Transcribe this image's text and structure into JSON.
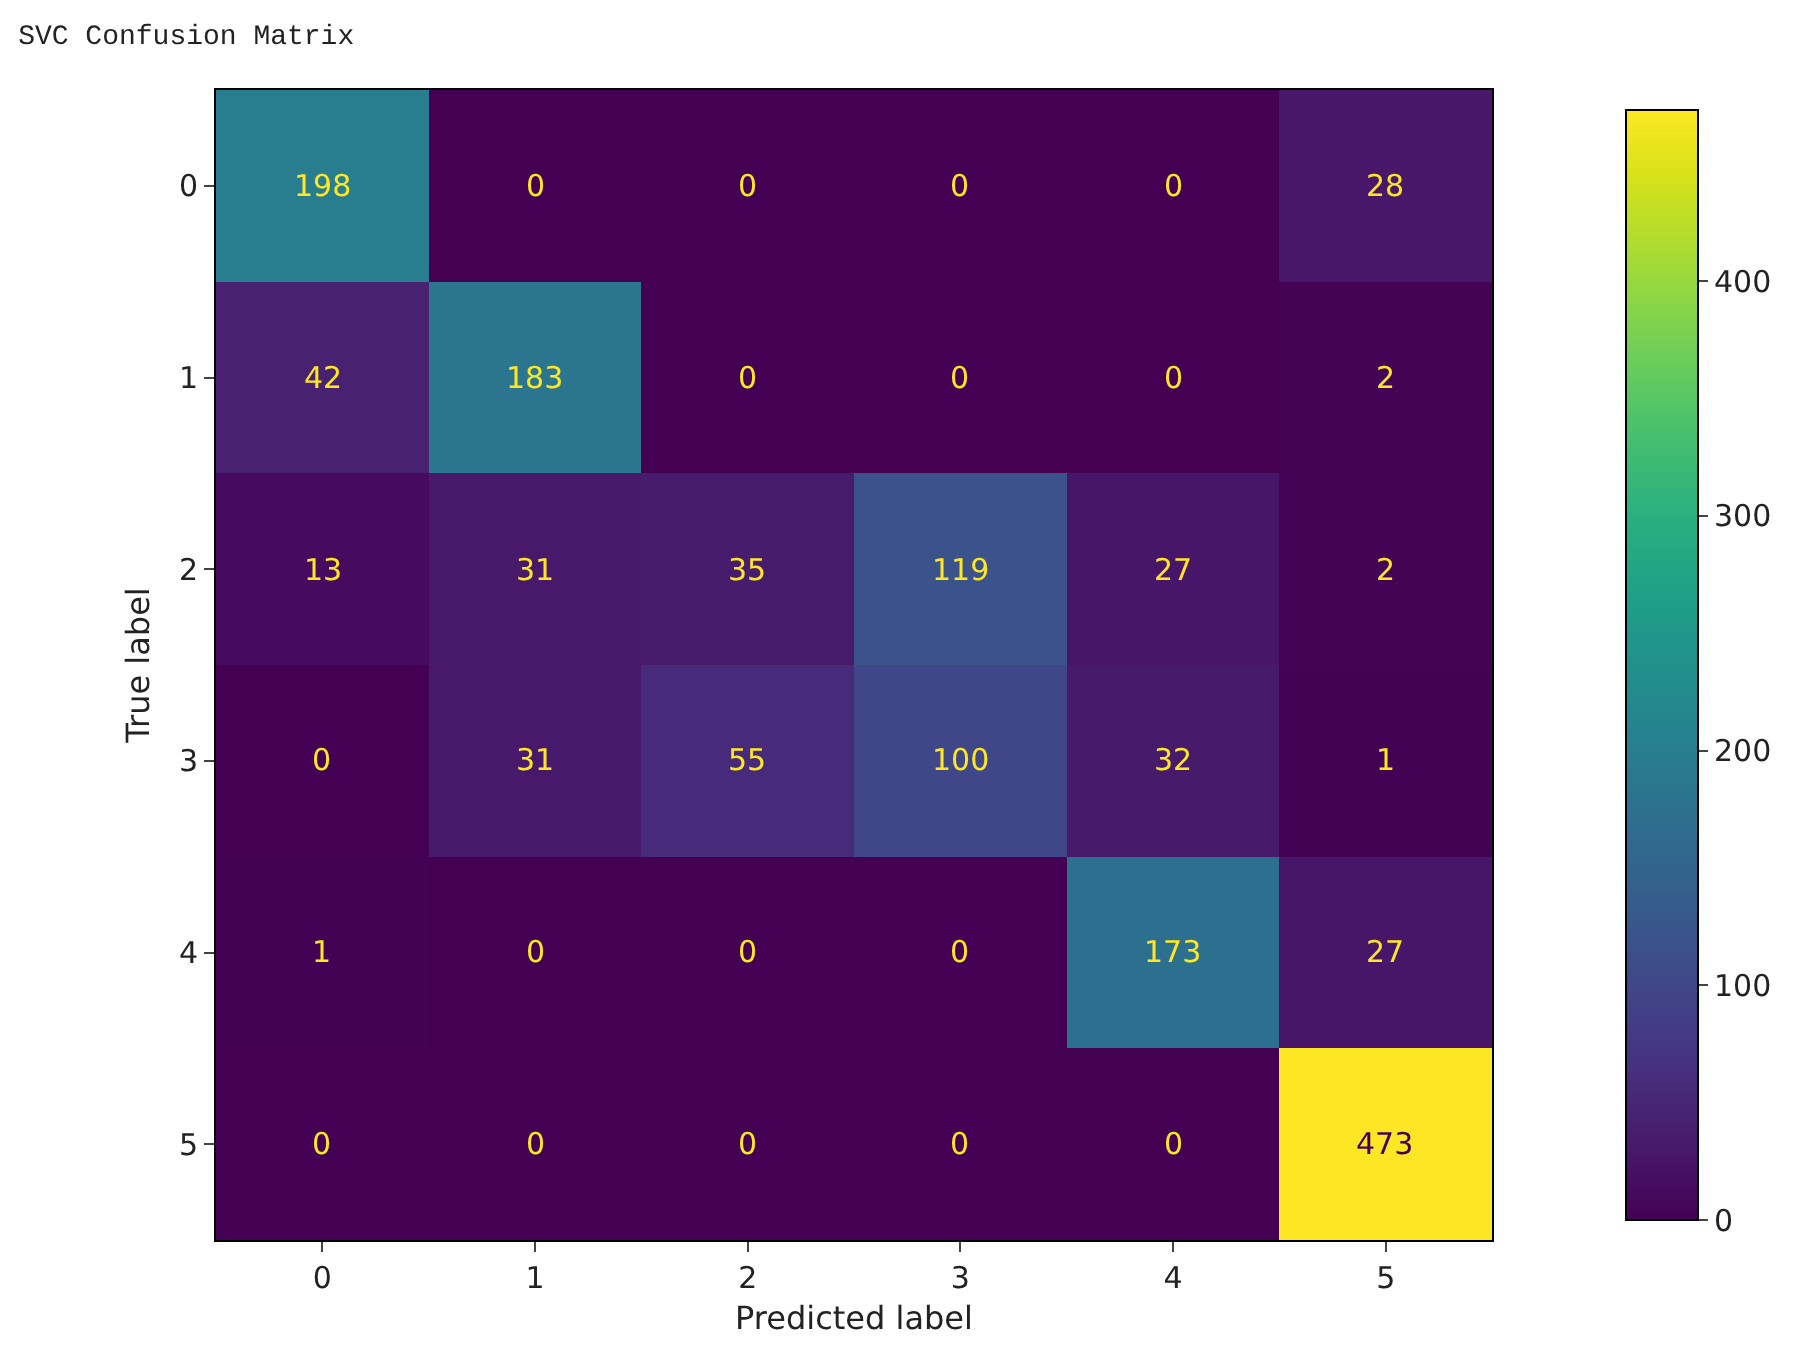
{
  "chart_data": {
    "type": "heatmap",
    "title": "SVC Confusion Matrix",
    "xlabel": "Predicted label",
    "ylabel": "True label",
    "categories": [
      "0",
      "1",
      "2",
      "3",
      "4",
      "5"
    ],
    "y_categories": [
      "0",
      "1",
      "2",
      "3",
      "4",
      "5"
    ],
    "cells": [
      [
        198,
        0,
        0,
        0,
        0,
        28
      ],
      [
        42,
        183,
        0,
        0,
        0,
        2
      ],
      [
        13,
        31,
        35,
        119,
        27,
        2
      ],
      [
        0,
        31,
        55,
        100,
        32,
        1
      ],
      [
        1,
        0,
        0,
        0,
        173,
        27
      ],
      [
        0,
        0,
        0,
        0,
        0,
        473
      ]
    ],
    "clim": [
      0,
      473
    ],
    "cticks": [
      0,
      100,
      200,
      300,
      400
    ],
    "data_labels": true
  }
}
